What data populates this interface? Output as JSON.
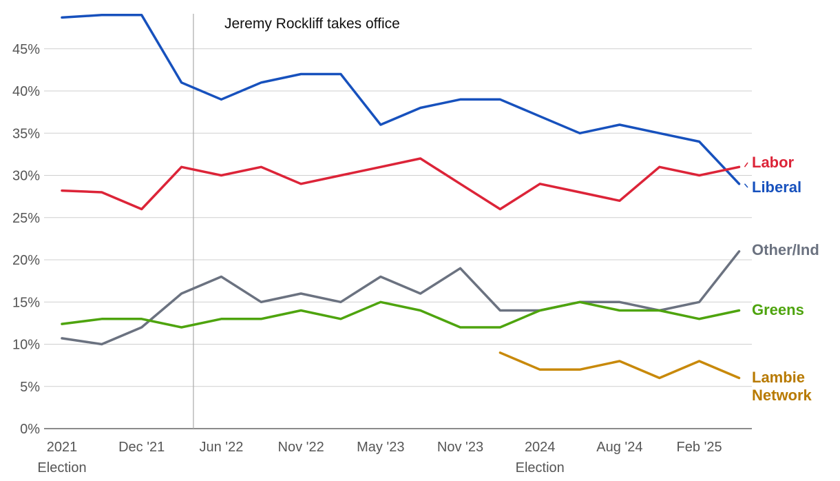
{
  "chart_data": {
    "type": "line",
    "title": "",
    "xlabel": "",
    "ylabel": "",
    "ylim": [
      0,
      50
    ],
    "y_ticks": [
      "0%",
      "5%",
      "10%",
      "15%",
      "20%",
      "25%",
      "30%",
      "35%",
      "40%",
      "45%"
    ],
    "x_tick_labels": [
      {
        "label": "2021",
        "sub": "Election",
        "i": 0
      },
      {
        "label": "Dec '21",
        "sub": "",
        "i": 2
      },
      {
        "label": "Jun '22",
        "sub": "",
        "i": 4
      },
      {
        "label": "Nov '22",
        "sub": "",
        "i": 6
      },
      {
        "label": "May '23",
        "sub": "",
        "i": 8
      },
      {
        "label": "Nov '23",
        "sub": "",
        "i": 10
      },
      {
        "label": "2024",
        "sub": "Election",
        "i": 12
      },
      {
        "label": "Aug '24",
        "sub": "",
        "i": 14
      },
      {
        "label": "Feb '25",
        "sub": "",
        "i": 16
      }
    ],
    "annotation": {
      "text": "Jeremy Rockliff takes office",
      "at_index": 3.3
    },
    "series": [
      {
        "name": "Liberal",
        "label": "Liberal",
        "color": "#1751bd",
        "values": [
          48.7,
          49,
          49,
          41,
          39,
          41,
          42,
          42,
          36,
          38,
          39,
          39,
          37,
          35,
          36,
          35,
          34,
          29
        ]
      },
      {
        "name": "Labor",
        "label": "Labor",
        "color": "#dc2438",
        "values": [
          28.2,
          28,
          26,
          31,
          30,
          31,
          29,
          30,
          31,
          32,
          29,
          26,
          29,
          28,
          27,
          31,
          30,
          31
        ]
      },
      {
        "name": "Other/Ind",
        "label": "Other/Ind",
        "color": "#6b7280",
        "values": [
          10.7,
          10,
          12,
          16,
          18,
          15,
          16,
          15,
          18,
          16,
          19,
          14,
          14,
          15,
          15,
          14,
          15,
          21
        ]
      },
      {
        "name": "Greens",
        "label": "Greens",
        "color": "#4ea40e",
        "values": [
          12.4,
          13,
          13,
          12,
          13,
          13,
          14,
          13,
          15,
          14,
          12,
          12,
          14,
          15,
          14,
          14,
          13,
          14
        ]
      },
      {
        "name": "Lambie Network",
        "label": "Lambie Network",
        "label_lines": [
          "Lambie",
          "Network"
        ],
        "color": "#c8890a",
        "label_color": "#b87a00",
        "values": [
          null,
          null,
          null,
          null,
          null,
          null,
          null,
          null,
          null,
          null,
          null,
          9,
          7,
          7,
          8,
          6,
          8,
          6
        ]
      }
    ]
  }
}
